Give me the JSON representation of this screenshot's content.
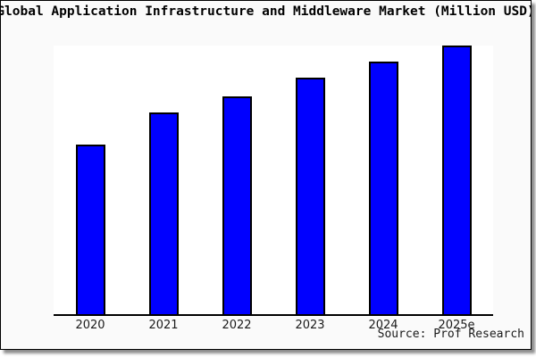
{
  "chart": {
    "title": "Global Application Infrastructure and Middleware Market (Million USD)",
    "source": "Source: Prof Research"
  },
  "chart_data": {
    "type": "bar",
    "title": "Global Application Infrastructure and Middleware Market (Million USD)",
    "categories": [
      "2020",
      "2021",
      "2022",
      "2023",
      "2024",
      "2025e"
    ],
    "values": [
      63,
      75,
      81,
      88,
      94,
      100
    ],
    "xlabel": "",
    "ylabel": "",
    "ylim": [
      0,
      100
    ],
    "grid": false,
    "legend": false,
    "y_axis_shown": false,
    "note": "No y-axis or data labels are rendered; values are relative units estimated from bar heights with 2025e = 100",
    "bar_color": "#0000ff",
    "bar_border_color": "#000000"
  },
  "colors": {
    "canvas_background": "#fafafa",
    "plot_background": "#ffffff",
    "bar_fill": "#0000ff",
    "axis_line": "#000000",
    "text": "#000000",
    "frame_border": "#000000",
    "shadow": "#999999"
  }
}
